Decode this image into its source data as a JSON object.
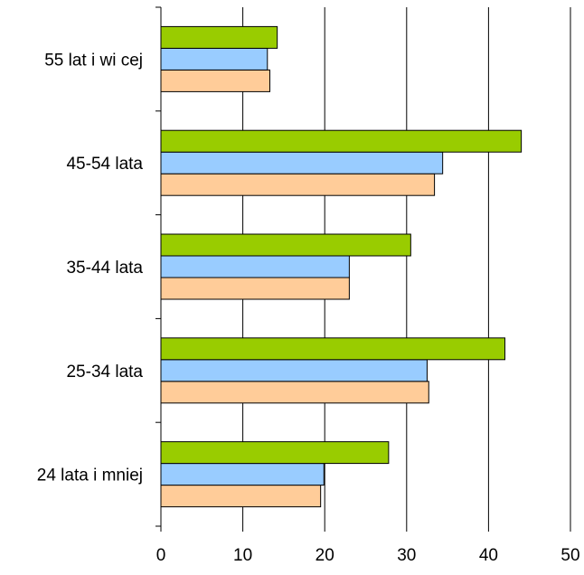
{
  "chart_data": {
    "type": "bar",
    "orientation": "horizontal",
    "categories": [
      "24 lata i mniej",
      "25-34 lata",
      "35-44 lata",
      "45-54 lata",
      "55 lat i wi  cej"
    ],
    "series": [
      {
        "color": "#FFCC99",
        "values": [
          19.5,
          32.7,
          23.0,
          33.4,
          13.3
        ]
      },
      {
        "color": "#99CCFF",
        "values": [
          19.9,
          32.5,
          23.0,
          34.4,
          13.0
        ]
      },
      {
        "color": "#99CC00",
        "values": [
          27.8,
          42.0,
          30.5,
          44.0,
          14.2
        ]
      }
    ],
    "xlim": [
      0,
      50
    ],
    "x_ticks": [
      "0",
      "10",
      "20",
      "30",
      "40",
      "50"
    ],
    "grid": "vertical",
    "legend": "none"
  }
}
